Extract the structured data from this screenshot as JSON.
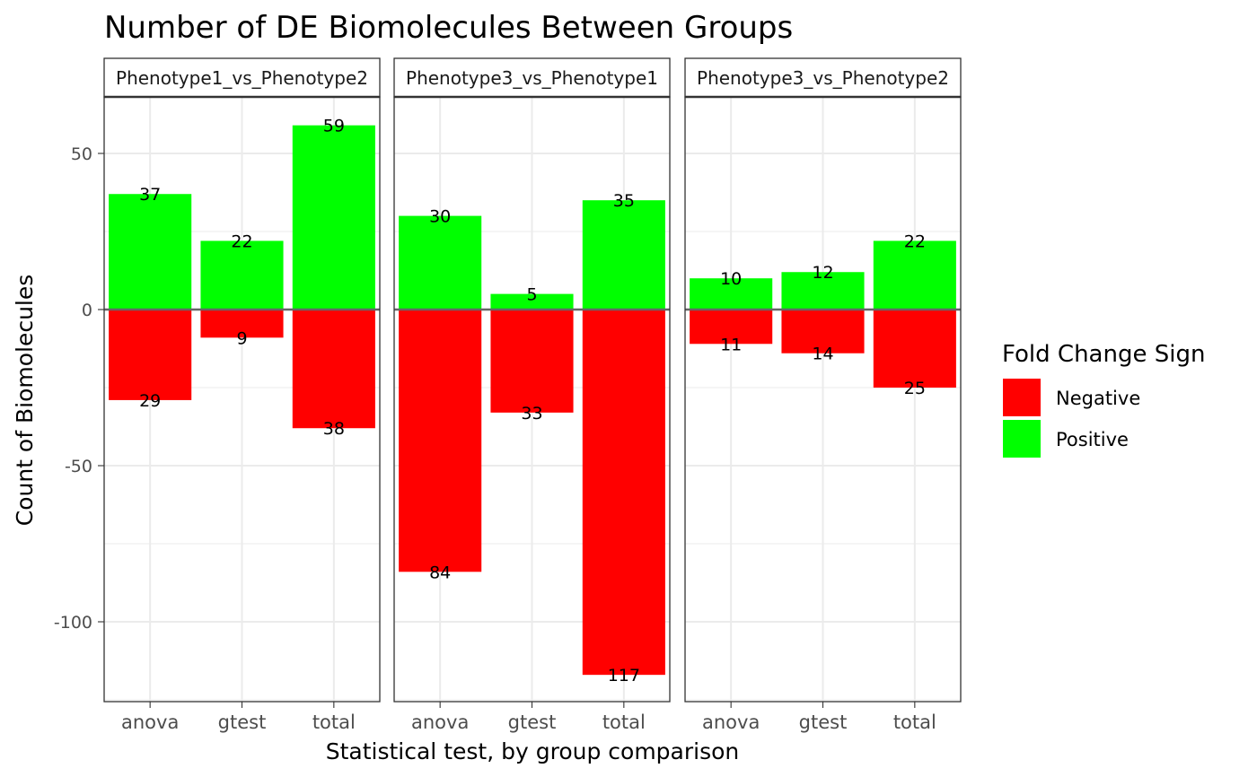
{
  "chart_data": {
    "type": "bar",
    "title": "Number of DE Biomolecules Between Groups",
    "xlabel": "Statistical test, by group comparison",
    "ylabel": "Count of Biomolecules",
    "ylim": [
      -125,
      68
    ],
    "y_ticks": [
      50,
      0,
      -50,
      -100
    ],
    "y_tick_labels": [
      "50",
      "0",
      "-50",
      "-100"
    ],
    "grid": true,
    "categories": [
      "anova",
      "gtest",
      "total"
    ],
    "facets": [
      {
        "label": "Phenotype1_vs_Phenotype2",
        "positive": [
          37,
          22,
          59
        ],
        "negative": [
          29,
          9,
          38
        ]
      },
      {
        "label": "Phenotype3_vs_Phenotype1",
        "positive": [
          30,
          5,
          35
        ],
        "negative": [
          84,
          33,
          117
        ]
      },
      {
        "label": "Phenotype3_vs_Phenotype2",
        "positive": [
          10,
          12,
          22
        ],
        "negative": [
          11,
          14,
          25
        ]
      }
    ],
    "legend": {
      "title": "Fold Change Sign",
      "placement": "right",
      "entries": [
        {
          "name": "Negative",
          "color": "#FF0000"
        },
        {
          "name": "Positive",
          "color": "#00FF00"
        }
      ]
    }
  }
}
